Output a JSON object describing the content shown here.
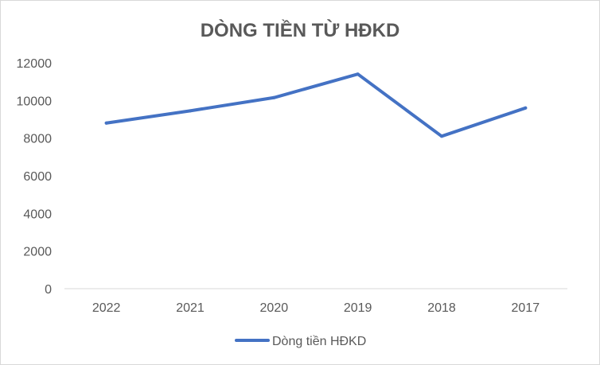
{
  "chart_data": {
    "type": "line",
    "title": "DÒNG TIỀN TỪ HĐKD",
    "xlabel": "",
    "ylabel": "",
    "categories": [
      "2022",
      "2021",
      "2020",
      "2019",
      "2018",
      "2017"
    ],
    "series": [
      {
        "name": "Dòng tiền HĐKD",
        "color": "#4472C4",
        "values": [
          8800,
          9450,
          10150,
          11400,
          8100,
          9600
        ]
      }
    ],
    "ylim": [
      0,
      12000
    ],
    "yticks": [
      0,
      2000,
      4000,
      6000,
      8000,
      10000,
      12000
    ],
    "grid": false,
    "legend_position": "bottom"
  }
}
